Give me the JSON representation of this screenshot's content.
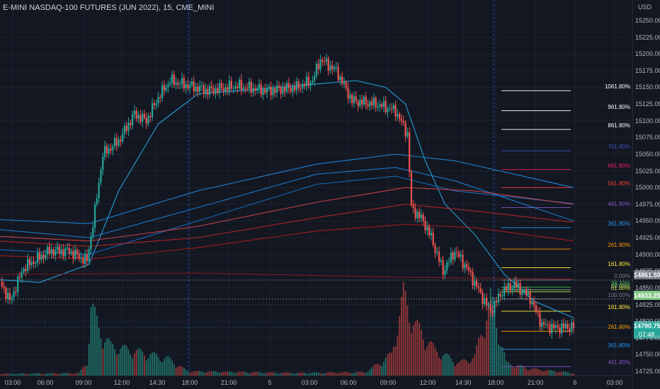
{
  "window": {
    "title": "E-MINI NASDAQ-100 FUTURES (JUN 2022), 15, CME_MINI",
    "currency": "USD"
  },
  "price_scale": {
    "ticks": [
      "15250.00",
      "15225.00",
      "15200.00",
      "15175.00",
      "15150.00",
      "15125.00",
      "15100.00",
      "15075.00",
      "15050.00",
      "15025.00",
      "15000.00",
      "14975.00",
      "14950.00",
      "14925.00",
      "14900.00",
      "14875.00",
      "14850.00",
      "14825.00",
      "14800.00",
      "14775.00",
      "14750.00",
      "14725.00"
    ]
  },
  "time_scale": {
    "ticks": [
      "03:00",
      "06:00",
      "09:00",
      "12:00",
      "14:30",
      "18:00",
      "21:00",
      "5",
      "03:00",
      "06:00",
      "09:00",
      "12:00",
      "14:30",
      "18:00",
      "21:00",
      "6",
      "03:00"
    ]
  },
  "price_tags": {
    "level_high": {
      "label": "14861.50",
      "color": "#787b86"
    },
    "level_low": {
      "label": "14833.25",
      "color": "#81c784"
    },
    "last": {
      "label": "14790.75",
      "countdown": "07:48",
      "color": "#26a69a"
    }
  },
  "colors": {
    "background": "#131722",
    "grid": "#1e222d",
    "up": "#26a69a",
    "down": "#ef5350",
    "volume_up": "#1e6b63",
    "volume_down": "#8a3536",
    "ema_fast": "#29b6f6",
    "ma_blue": "#2962ff",
    "ma_red": "#f23645"
  },
  "chart_data": {
    "type": "candlestick",
    "symbol": "E-MINI NASDAQ-100 FUTURES (JUN 2022)",
    "timeframe": "15",
    "ylim": [
      14715,
      15260
    ],
    "grid": true,
    "price_keypoints": [
      {
        "t": 0,
        "p": 14860
      },
      {
        "t": 5,
        "p": 14830
      },
      {
        "t": 12,
        "p": 14880
      },
      {
        "t": 25,
        "p": 14905
      },
      {
        "t": 35,
        "p": 14905
      },
      {
        "t": 44,
        "p": 14890
      },
      {
        "t": 48,
        "p": 14965
      },
      {
        "t": 52,
        "p": 15050
      },
      {
        "t": 60,
        "p": 15070
      },
      {
        "t": 68,
        "p": 15110
      },
      {
        "t": 74,
        "p": 15100
      },
      {
        "t": 80,
        "p": 15135
      },
      {
        "t": 86,
        "p": 15160
      },
      {
        "t": 92,
        "p": 15155
      },
      {
        "t": 105,
        "p": 15145
      },
      {
        "t": 120,
        "p": 15152
      },
      {
        "t": 135,
        "p": 15145
      },
      {
        "t": 150,
        "p": 15150
      },
      {
        "t": 158,
        "p": 15160
      },
      {
        "t": 162,
        "p": 15192
      },
      {
        "t": 170,
        "p": 15175
      },
      {
        "t": 178,
        "p": 15130
      },
      {
        "t": 190,
        "p": 15125
      },
      {
        "t": 200,
        "p": 15115
      },
      {
        "t": 206,
        "p": 15080
      },
      {
        "t": 208,
        "p": 14970
      },
      {
        "t": 214,
        "p": 14950
      },
      {
        "t": 218,
        "p": 14925
      },
      {
        "t": 224,
        "p": 14875
      },
      {
        "t": 230,
        "p": 14905
      },
      {
        "t": 236,
        "p": 14880
      },
      {
        "t": 244,
        "p": 14835
      },
      {
        "t": 248,
        "p": 14815
      },
      {
        "t": 254,
        "p": 14845
      },
      {
        "t": 260,
        "p": 14855
      },
      {
        "t": 268,
        "p": 14835
      },
      {
        "t": 274,
        "p": 14795
      },
      {
        "t": 280,
        "p": 14790
      },
      {
        "t": 290,
        "p": 14792
      }
    ],
    "indicators": [
      {
        "name": "fast",
        "color": "#29b6f6",
        "points": [
          {
            "t": 0,
            "p": 14862
          },
          {
            "t": 20,
            "p": 14858
          },
          {
            "t": 45,
            "p": 14885
          },
          {
            "t": 60,
            "p": 14995
          },
          {
            "t": 80,
            "p": 15095
          },
          {
            "t": 100,
            "p": 15140
          },
          {
            "t": 130,
            "p": 15147
          },
          {
            "t": 160,
            "p": 15155
          },
          {
            "t": 180,
            "p": 15160
          },
          {
            "t": 195,
            "p": 15150
          },
          {
            "t": 205,
            "p": 15125
          },
          {
            "t": 215,
            "p": 15040
          },
          {
            "t": 225,
            "p": 14975
          },
          {
            "t": 240,
            "p": 14930
          },
          {
            "t": 255,
            "p": 14870
          },
          {
            "t": 270,
            "p": 14830
          },
          {
            "t": 290,
            "p": 14805
          }
        ]
      },
      {
        "name": "blue1",
        "color": "#2196f3",
        "points": [
          {
            "t": 0,
            "p": 14952
          },
          {
            "t": 45,
            "p": 14946
          },
          {
            "t": 100,
            "p": 14995
          },
          {
            "t": 160,
            "p": 15035
          },
          {
            "t": 200,
            "p": 15050
          },
          {
            "t": 230,
            "p": 15040
          },
          {
            "t": 290,
            "p": 15000
          }
        ]
      },
      {
        "name": "blue2",
        "color": "#1e88e5",
        "points": [
          {
            "t": 0,
            "p": 14937
          },
          {
            "t": 45,
            "p": 14925
          },
          {
            "t": 100,
            "p": 14970
          },
          {
            "t": 160,
            "p": 15020
          },
          {
            "t": 200,
            "p": 15030
          },
          {
            "t": 230,
            "p": 15010
          },
          {
            "t": 290,
            "p": 14950
          }
        ]
      },
      {
        "name": "blue3",
        "color": "#1976d2",
        "points": [
          {
            "t": 0,
            "p": 14907
          },
          {
            "t": 45,
            "p": 14900
          },
          {
            "t": 100,
            "p": 14950
          },
          {
            "t": 160,
            "p": 15005
          },
          {
            "t": 200,
            "p": 15017
          },
          {
            "t": 230,
            "p": 14995
          },
          {
            "t": 290,
            "p": 14976
          }
        ]
      },
      {
        "name": "red1",
        "color": "#e0474c",
        "points": [
          {
            "t": 0,
            "p": 14927
          },
          {
            "t": 45,
            "p": 14920
          },
          {
            "t": 100,
            "p": 14942
          },
          {
            "t": 160,
            "p": 14978
          },
          {
            "t": 205,
            "p": 15000
          },
          {
            "t": 240,
            "p": 14995
          },
          {
            "t": 290,
            "p": 14975
          }
        ]
      },
      {
        "name": "red2",
        "color": "#c62828",
        "points": [
          {
            "t": 0,
            "p": 14920
          },
          {
            "t": 45,
            "p": 14912
          },
          {
            "t": 100,
            "p": 14925
          },
          {
            "t": 160,
            "p": 14955
          },
          {
            "t": 205,
            "p": 14975
          },
          {
            "t": 240,
            "p": 14965
          },
          {
            "t": 290,
            "p": 14948
          }
        ]
      },
      {
        "name": "red3",
        "color": "#b71c1c",
        "points": [
          {
            "t": 0,
            "p": 14898
          },
          {
            "t": 45,
            "p": 14893
          },
          {
            "t": 100,
            "p": 14910
          },
          {
            "t": 160,
            "p": 14935
          },
          {
            "t": 205,
            "p": 14945
          },
          {
            "t": 240,
            "p": 14940
          },
          {
            "t": 290,
            "p": 14920
          }
        ]
      },
      {
        "name": "red4",
        "color": "#8e1d1d",
        "points": [
          {
            "t": 0,
            "p": 14870
          },
          {
            "t": 100,
            "p": 14872
          },
          {
            "t": 200,
            "p": 14866
          },
          {
            "t": 290,
            "p": 14863
          }
        ]
      }
    ],
    "fib_levels": [
      {
        "label": "1061.80%",
        "price": 15145,
        "color": "#ffffff"
      },
      {
        "label": "961.80%",
        "price": 15115,
        "color": "#ffffff"
      },
      {
        "label": "861.80%",
        "price": 15087,
        "color": "#ffffff"
      },
      {
        "label": "761.80%",
        "price": 15055,
        "color": "#3f51b5"
      },
      {
        "label": "661.80%",
        "price": 15027,
        "color": "#e91e63"
      },
      {
        "label": "561.80%",
        "price": 15000,
        "color": "#f44336"
      },
      {
        "label": "461.80%",
        "price": 14970,
        "color": "#7e57c2"
      },
      {
        "label": "361.80%",
        "price": 14940,
        "color": "#2196f3"
      },
      {
        "label": "261.80%",
        "price": 14908,
        "color": "#ff9800"
      },
      {
        "label": "161.80%",
        "price": 14880,
        "color": "#ffeb3b"
      },
      {
        "label": "0.00%",
        "price": 14861.5,
        "color": "#787b86"
      },
      {
        "label": "38.20%",
        "price": 14851,
        "color": "#4caf50"
      },
      {
        "label": "50.00%",
        "price": 14847,
        "color": "#81c784"
      },
      {
        "label": "61.80%",
        "price": 14844,
        "color": "#cddc39"
      },
      {
        "label": "100.00%",
        "price": 14833.25,
        "color": "#787b86"
      },
      {
        "label": "161.80%",
        "price": 14815,
        "color": "#ffeb3b"
      },
      {
        "label": "261.80%",
        "price": 14785,
        "color": "#ff9800"
      },
      {
        "label": "361.80%",
        "price": 14758,
        "color": "#2196f3"
      },
      {
        "label": "461.80%",
        "price": 14732,
        "color": "#7e57c2"
      }
    ],
    "volume_profile": [
      {
        "t": 0,
        "v": 0.02
      },
      {
        "t": 40,
        "v": 0.03
      },
      {
        "t": 44,
        "v": 0.15
      },
      {
        "t": 46,
        "v": 0.85
      },
      {
        "t": 50,
        "v": 0.55
      },
      {
        "t": 56,
        "v": 0.35
      },
      {
        "t": 70,
        "v": 0.28
      },
      {
        "t": 85,
        "v": 0.2
      },
      {
        "t": 95,
        "v": 0.05
      },
      {
        "t": 150,
        "v": 0.03
      },
      {
        "t": 185,
        "v": 0.04
      },
      {
        "t": 198,
        "v": 0.25
      },
      {
        "t": 204,
        "v": 0.95
      },
      {
        "t": 210,
        "v": 0.6
      },
      {
        "t": 220,
        "v": 0.3
      },
      {
        "t": 232,
        "v": 0.15
      },
      {
        "t": 240,
        "v": 0.22
      },
      {
        "t": 248,
        "v": 0.9
      },
      {
        "t": 256,
        "v": 0.15
      },
      {
        "t": 268,
        "v": 0.08
      },
      {
        "t": 290,
        "v": 0.03
      }
    ],
    "session_markers": [
      "18:00",
      "18:00"
    ]
  }
}
